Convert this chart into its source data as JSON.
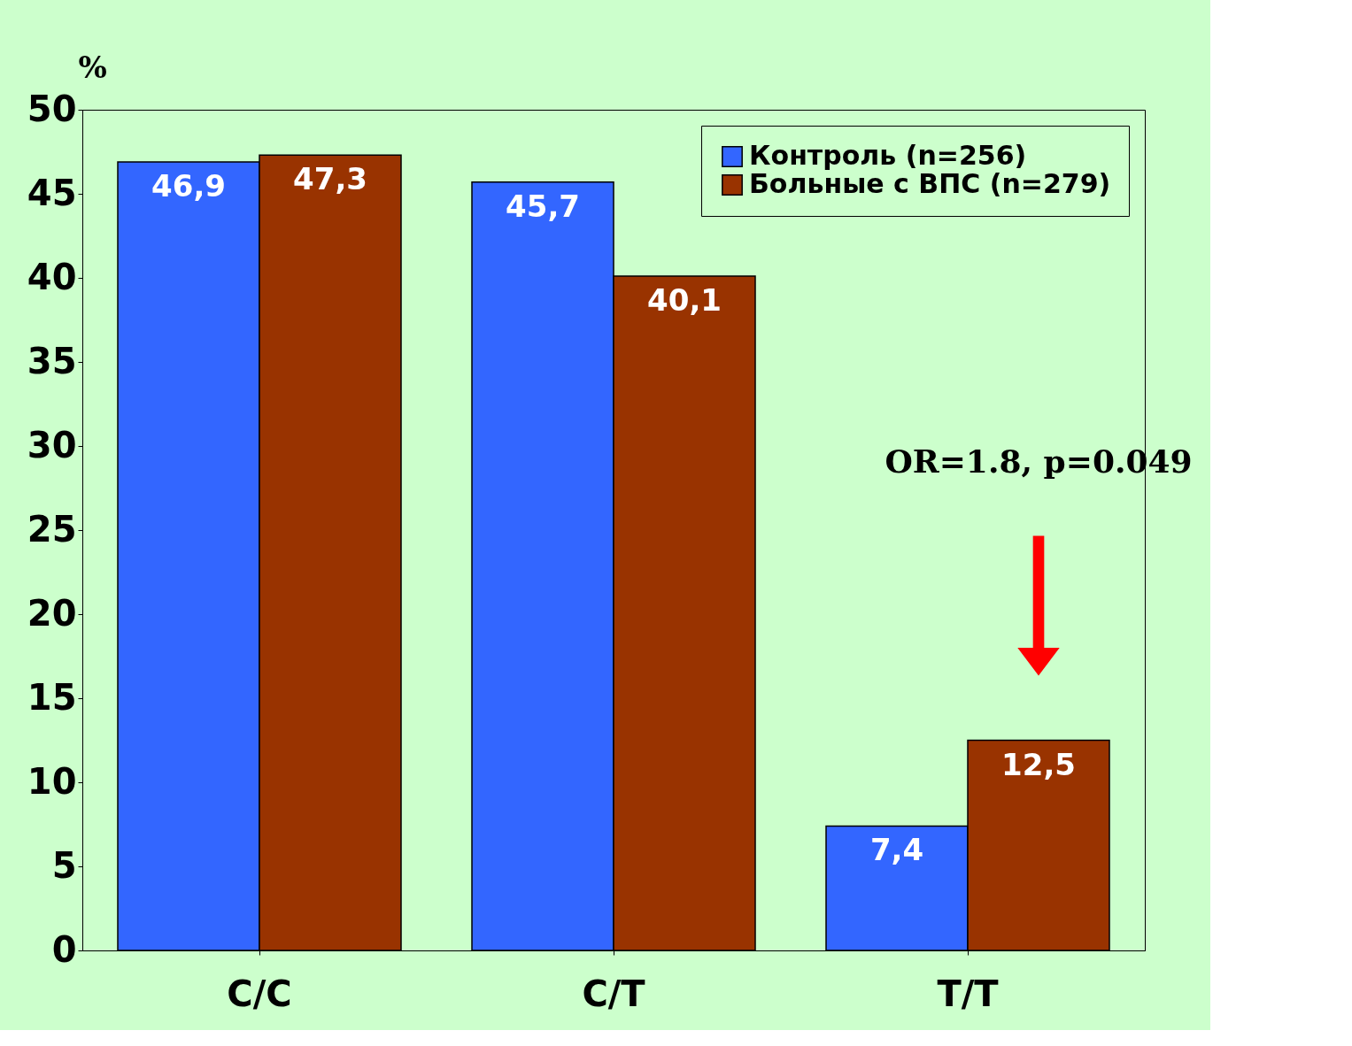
{
  "chart_data": {
    "type": "bar",
    "ylabel": "%",
    "categories": [
      "C/C",
      "C/T",
      "T/T"
    ],
    "series": [
      {
        "name": "Контроль (n=256)",
        "color": "#3366ff",
        "values": [
          46.9,
          45.7,
          7.4
        ],
        "value_labels": [
          "46,9",
          "45,7",
          "7,4"
        ]
      },
      {
        "name": "Больные с ВПС (n=279)",
        "color": "#993300",
        "values": [
          47.3,
          40.1,
          12.5
        ],
        "value_labels": [
          "47,3",
          "40,1",
          "12,5"
        ]
      }
    ],
    "ylim": [
      0,
      50
    ],
    "yticks": [
      0,
      5,
      10,
      15,
      20,
      25,
      30,
      35,
      40,
      45,
      50
    ],
    "annotations": [
      "OR=1.8, p=0.049"
    ],
    "legend": "top right",
    "grid": false
  }
}
